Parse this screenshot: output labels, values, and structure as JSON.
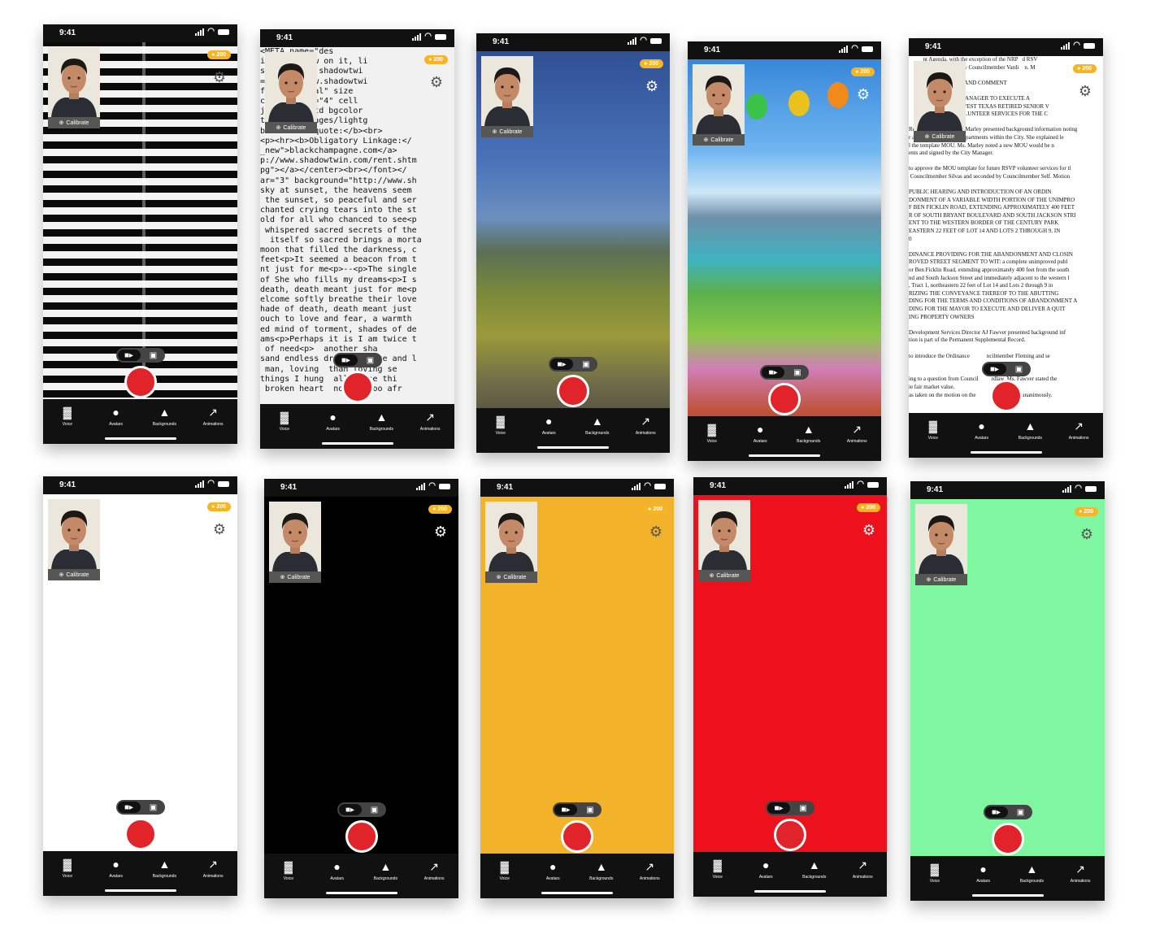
{
  "status": {
    "time": "9:41"
  },
  "coins": "200",
  "calibrate_label": "Calibrate",
  "tabs": [
    {
      "icon": "voice-icon",
      "label": "Voice"
    },
    {
      "icon": "avatar-icon",
      "label": "Avatars"
    },
    {
      "icon": "mountain-icon",
      "label": "Backgrounds"
    },
    {
      "icon": "running-icon",
      "label": "Animations"
    }
  ],
  "colors": {
    "record": "#e0242a",
    "coin": "#f8b421",
    "tabbar": "#111111"
  },
  "screens": [
    {
      "background": "stripes"
    },
    {
      "background": "code-text"
    },
    {
      "background": "landscape-field"
    },
    {
      "background": "game-landscape"
    },
    {
      "background": "document"
    },
    {
      "background": "#ffffff"
    },
    {
      "background": "#000000"
    },
    {
      "background": "#f2b22a"
    },
    {
      "background": "#ec111c"
    },
    {
      "background": "#7ff6a0"
    }
  ],
  "code_lines": [
    "<META name=\"des",
    "ice to throw on it, li",
    "shadowtwin, shadowtwi",
    "=\"http://www.shadowtwi",
    "face=\"Mistral\" size",
    "cellspacing=\"4\" cell",
    "jpeg\"><tr><td bgcolor",
    "twin.com/images/lightg",
    "b>Timeless quote:</b><br>",
    "<p><hr><b>Obligatory Linkage:</",
    "_new\">blackchampagne.com</a>",
    "p://www.shadowtwin.com/rent.shtm",
    "pg\"></a></center><br></font></",
    "ar=\"3\" background=\"http://www.sh",
    "sky at sunset, the heavens seem",
    " the sunset, so peaceful and ser",
    "chanted crying tears into the st",
    "old for all who chanced to see<p",
    " whispered sacred secrets of the",
    "  itself so sacred brings a morta",
    "moon that filled the darkness, c",
    "feet<p>It seemed a beacon from t",
    "nt just for me<p>--<p>The single",
    "of She who fills my dreams<p>I s",
    "death, death meant just for me<p",
    "elcome softly breathe their love",
    "hade of death, death meant just",
    "ouch to love and fear, a warmth",
    "ed mind of torment, shades of de",
    "ams<p>Perhaps it is I am twice t",
    " of need<p>  another sha",
    "sand endless dreams<p>Hate and l",
    " man, loving  than loving se",
    "things I hung  all these thi",
    " broken heart  nding, too afr"
  ],
  "doc_lines": [
    "          nt Agenda, with the exception of the NRP   d RSV",
    "          as and seconded by Councilmember Vardi    n. M",
    "",
    "          BLIC HEARING AND COMMENT",
    "",
    "                 THE CITY MANAGER TO EXECUTE A",
    "                 WITH THE WEST TEXAS RETIRED SENIOR V",
    "                 ROVIDE VOLUNTEER SERVICES FOR THE C",
    "",
    "Resources Director Lisa Marley presented background information noting",
    "r assistance to various departments within the City. She explained le",
    "l the template MOU. Ms. Marley noted a new MOU would be n",
    "ents and signed by the City Manager.",
    "",
    "to approve the MOU template for future RSVP volunteer services for tl",
    " Councilmember Silvas and seconded by Councilmember Self. Motion",
    "",
    "PUBLIC HEARING AND INTRODUCTION OF AN ORDIN",
    "DONMENT OF A VARIABLE WIDTH PORTION OF THE UNIMPRO",
    "F BEN FICKLIN ROAD, EXTENDING APPROXIMATELY 400 FEET",
    "R OF SOUTH BRYANT BOULEVARD AND SOUTH JACKSON STRI",
    "ENT TO THE WESTERN BORDER OF THE CENTURY PARK",
    "EASTERN 22 FEET OF LOT 14 AND LOTS 2 THROUGH 9, IN",
    "0",
    "",
    "DINANCE PROVIDING FOR THE ABANDONMENT AND CLOSIN",
    "ROVED STREET SEGMENT TO WIT: a complete unimproved publ",
    "or Ben Ficklin Road, extending approximately 400 feet from the south",
    "nd and South Jackson Street and immediately adjacent to the western l",
    ", Tract 1, northeastern 22 feet of Lot 14 and Lots 2 through 9 in",
    "RIZING THE CONVEYANCE THEREOF TO THE ABUTTING",
    "DING FOR THE TERMS AND CONDITIONS OF ABANDONMENT A",
    "DING FOR THE MAYOR TO EXECUTE AND DELIVER A QUIT",
    "ING PROPERTY OWNERS",
    "",
    "Development Services Director AJ Fawver presented background inf",
    "tion is part of the Permanent Supplemental Record.",
    "",
    "to introduce the Ordinance            ncilmember Fleming and se",
    "",
    "",
    "ing to a question from Council         rdlaw, Ms. Fawver stated the",
    "ie fair market value.",
    "as taken on the motion on the             tion carried unanimously."
  ]
}
